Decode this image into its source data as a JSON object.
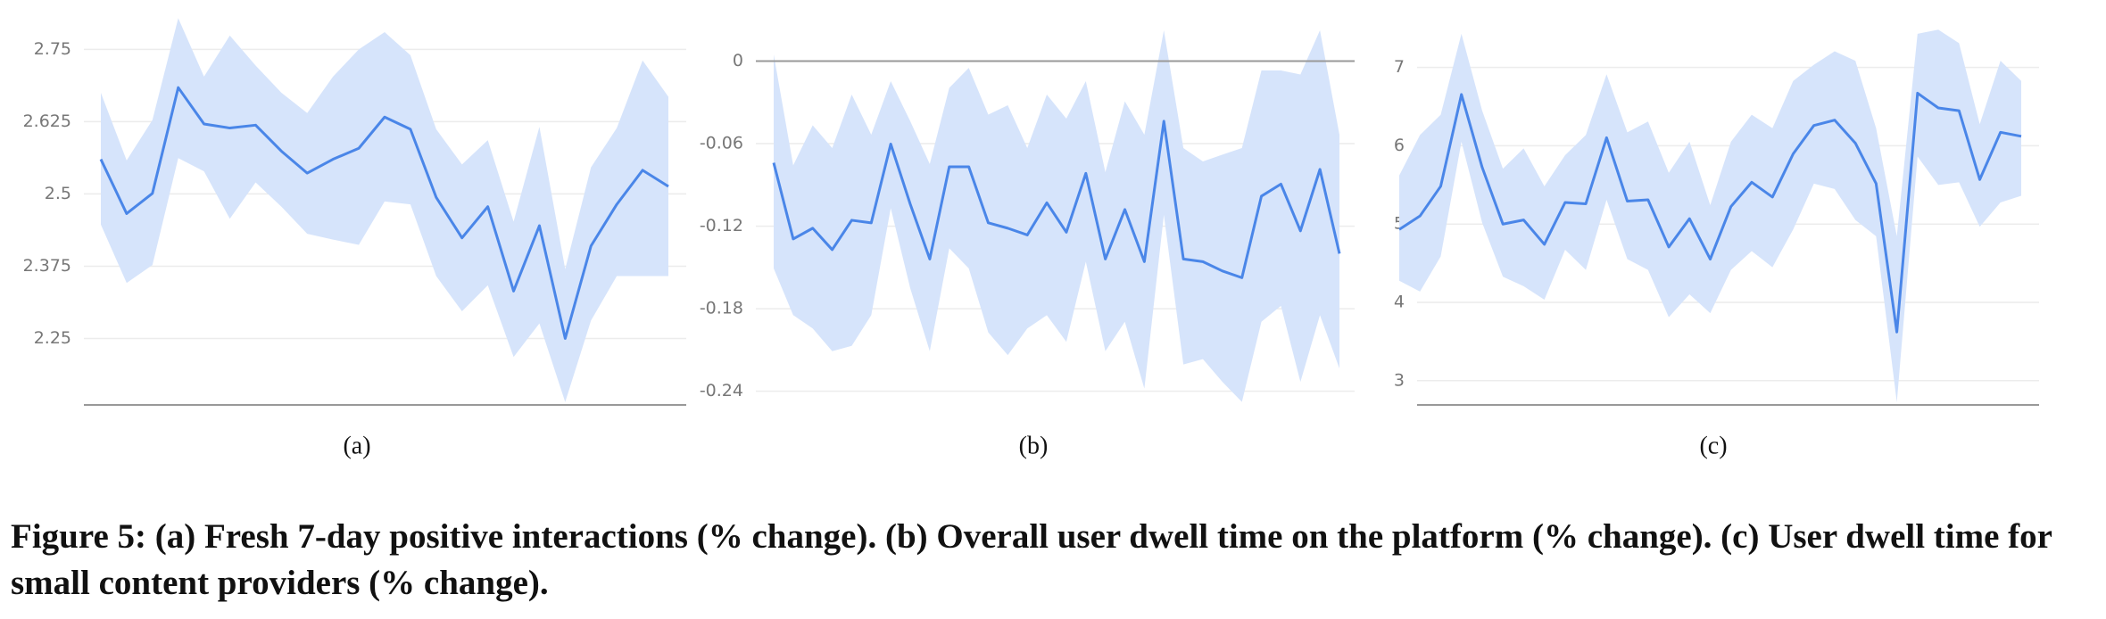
{
  "chart_data": [
    {
      "type": "line",
      "label": "(a)",
      "color": "#4a86e8",
      "band_color": "#d6e4fb",
      "ylim": [
        2.135,
        2.8
      ],
      "yticks": [
        2.25,
        2.375,
        2.5,
        2.625,
        2.75
      ],
      "grid": true,
      "values": [
        2.56,
        2.466,
        2.501,
        2.684,
        2.621,
        2.614,
        2.619,
        2.574,
        2.536,
        2.56,
        2.579,
        2.633,
        2.612,
        2.494,
        2.424,
        2.478,
        2.332,
        2.445,
        2.25,
        2.41,
        2.482,
        2.541,
        2.513
      ],
      "upper": [
        2.675,
        2.558,
        2.628,
        2.804,
        2.703,
        2.774,
        2.722,
        2.675,
        2.64,
        2.703,
        2.75,
        2.78,
        2.74,
        2.612,
        2.551,
        2.593,
        2.452,
        2.616,
        2.37,
        2.546,
        2.614,
        2.731,
        2.668
      ],
      "lower": [
        2.447,
        2.346,
        2.377,
        2.562,
        2.539,
        2.457,
        2.52,
        2.478,
        2.431,
        2.421,
        2.412,
        2.487,
        2.482,
        2.358,
        2.297,
        2.342,
        2.218,
        2.276,
        2.14,
        2.281,
        2.358,
        2.358,
        2.358
      ]
    },
    {
      "type": "line",
      "label": "(b)",
      "color": "#4a86e8",
      "band_color": "#d6e4fb",
      "ylim": [
        -0.25,
        0.025
      ],
      "yticks": [
        -0.24,
        -0.18,
        -0.12,
        -0.06,
        0
      ],
      "grid": true,
      "values": [
        -0.0739,
        -0.1293,
        -0.1215,
        -0.1371,
        -0.1157,
        -0.1176,
        -0.0603,
        -0.104,
        -0.1439,
        -0.0768,
        -0.0768,
        -0.1176,
        -0.1215,
        -0.1264,
        -0.103,
        -0.1244,
        -0.0816,
        -0.1439,
        -0.1079,
        -0.1458,
        -0.0437,
        -0.1439,
        -0.1458,
        -0.1526,
        -0.1575,
        -0.0982,
        -0.0894,
        -0.1234,
        -0.0787,
        -0.14
      ],
      "upper": [
        0.0049,
        -0.0758,
        -0.0467,
        -0.0632,
        -0.0243,
        -0.0535,
        -0.0146,
        -0.0437,
        -0.0748,
        -0.0194,
        -0.0049,
        -0.0389,
        -0.0321,
        -0.0632,
        -0.0243,
        -0.0418,
        -0.0146,
        -0.0807,
        -0.0292,
        -0.0535,
        0.0224,
        -0.0632,
        -0.0729,
        -0.068,
        -0.0632,
        -0.0068,
        -0.0068,
        -0.0097,
        0.0224,
        -0.0535
      ],
      "lower": [
        -0.1507,
        -0.1847,
        -0.1944,
        -0.2109,
        -0.207,
        -0.1847,
        -0.1069,
        -0.1652,
        -0.2109,
        -0.1361,
        -0.1507,
        -0.1973,
        -0.2138,
        -0.1944,
        -0.1847,
        -0.2041,
        -0.1458,
        -0.2109,
        -0.1895,
        -0.2381,
        -0.1118,
        -0.2206,
        -0.2167,
        -0.2332,
        -0.2478,
        -0.1895,
        -0.1779,
        -0.2332,
        -0.1847,
        -0.2235
      ]
    },
    {
      "type": "line",
      "label": "(c)",
      "color": "#4a86e8",
      "band_color": "#d6e4fb",
      "ylim": [
        2.69,
        7.52
      ],
      "yticks": [
        3,
        4,
        5,
        6,
        7
      ],
      "grid": true,
      "values": [
        4.931,
        5.103,
        5.483,
        6.655,
        5.724,
        5.0,
        5.052,
        4.741,
        5.276,
        5.259,
        6.103,
        5.293,
        5.31,
        4.707,
        5.069,
        4.552,
        5.224,
        5.534,
        5.345,
        5.897,
        6.259,
        6.328,
        6.034,
        5.517,
        3.621,
        6.672,
        6.483,
        6.448,
        5.569,
        6.172,
        6.121
      ],
      "upper": [
        5.621,
        6.138,
        6.397,
        7.431,
        6.448,
        5.707,
        5.966,
        5.483,
        5.879,
        6.138,
        6.914,
        6.172,
        6.31,
        5.655,
        6.052,
        5.241,
        6.052,
        6.397,
        6.224,
        6.828,
        7.034,
        7.207,
        7.086,
        6.224,
        4.845,
        7.431,
        7.483,
        7.31,
        6.276,
        7.086,
        6.828
      ],
      "lower": [
        4.276,
        4.138,
        4.586,
        6.052,
        5.017,
        4.328,
        4.207,
        4.034,
        4.672,
        4.414,
        5.31,
        4.552,
        4.414,
        3.81,
        4.103,
        3.862,
        4.414,
        4.655,
        4.448,
        4.931,
        5.517,
        5.448,
        5.052,
        4.845,
        2.724,
        5.862,
        5.5,
        5.534,
        4.966,
        5.276,
        5.362
      ]
    }
  ],
  "caption": "Figure 5: (a) Fresh 7-day positive interactions (% change). (b) Overall user dwell time on the platform (% change). (c) User dwell time for small content providers (% change)."
}
